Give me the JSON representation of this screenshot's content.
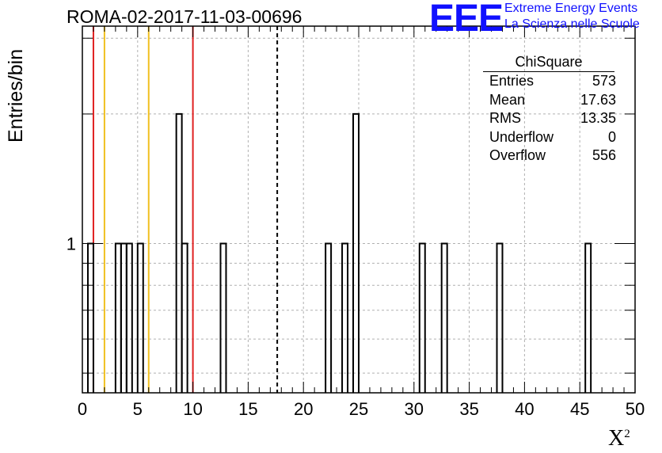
{
  "chart_data": {
    "type": "histogram",
    "title": "ROMA-02-2017-11-03-00696",
    "xlabel_base": "X",
    "xlabel_exp": "2",
    "ylabel": "Entries/bin",
    "xlim": [
      0,
      50
    ],
    "y_scale": "log",
    "ylim": [
      0.45,
      3.2
    ],
    "y_tick_labels": [
      "1"
    ],
    "x_ticks": [
      0,
      5,
      10,
      15,
      20,
      25,
      30,
      35,
      40,
      45,
      50
    ],
    "x_tick_labels": [
      "0",
      "5",
      "10",
      "15",
      "20",
      "25",
      "30",
      "35",
      "40",
      "45",
      "50"
    ],
    "grid": true,
    "bin_width": 0.5,
    "bins": [
      {
        "x": 0.5,
        "count": 1
      },
      {
        "x": 3.0,
        "count": 1
      },
      {
        "x": 3.5,
        "count": 1
      },
      {
        "x": 4.0,
        "count": 1
      },
      {
        "x": 5.0,
        "count": 1
      },
      {
        "x": 8.5,
        "count": 2
      },
      {
        "x": 9.0,
        "count": 1
      },
      {
        "x": 12.5,
        "count": 1
      },
      {
        "x": 22.0,
        "count": 1
      },
      {
        "x": 23.5,
        "count": 1
      },
      {
        "x": 24.5,
        "count": 2
      },
      {
        "x": 30.5,
        "count": 1
      },
      {
        "x": 32.5,
        "count": 1
      },
      {
        "x": 37.5,
        "count": 1
      },
      {
        "x": 45.5,
        "count": 1
      }
    ],
    "vertical_lines": [
      {
        "x": 1.0,
        "color": "#e02020",
        "style": "solid"
      },
      {
        "x": 2.0,
        "color": "#f0c020",
        "style": "solid"
      },
      {
        "x": 6.0,
        "color": "#f0c020",
        "style": "solid"
      },
      {
        "x": 10.0,
        "color": "#e02020",
        "style": "solid"
      },
      {
        "x": 17.63,
        "color": "#000000",
        "style": "dashed"
      }
    ],
    "stats_box": {
      "title": "ChiSquare",
      "rows": [
        {
          "label": "Entries",
          "value": "573"
        },
        {
          "label": "Mean",
          "value": "17.63"
        },
        {
          "label": "RMS",
          "value": "13.35"
        },
        {
          "label": "Underflow",
          "value": "0"
        },
        {
          "label": "Overflow",
          "value": "556"
        }
      ]
    }
  },
  "logo": {
    "text": "EEE",
    "line1": "Extreme Energy Events",
    "line2": "La Scienza nelle Scuole",
    "color": "#1010ff"
  }
}
